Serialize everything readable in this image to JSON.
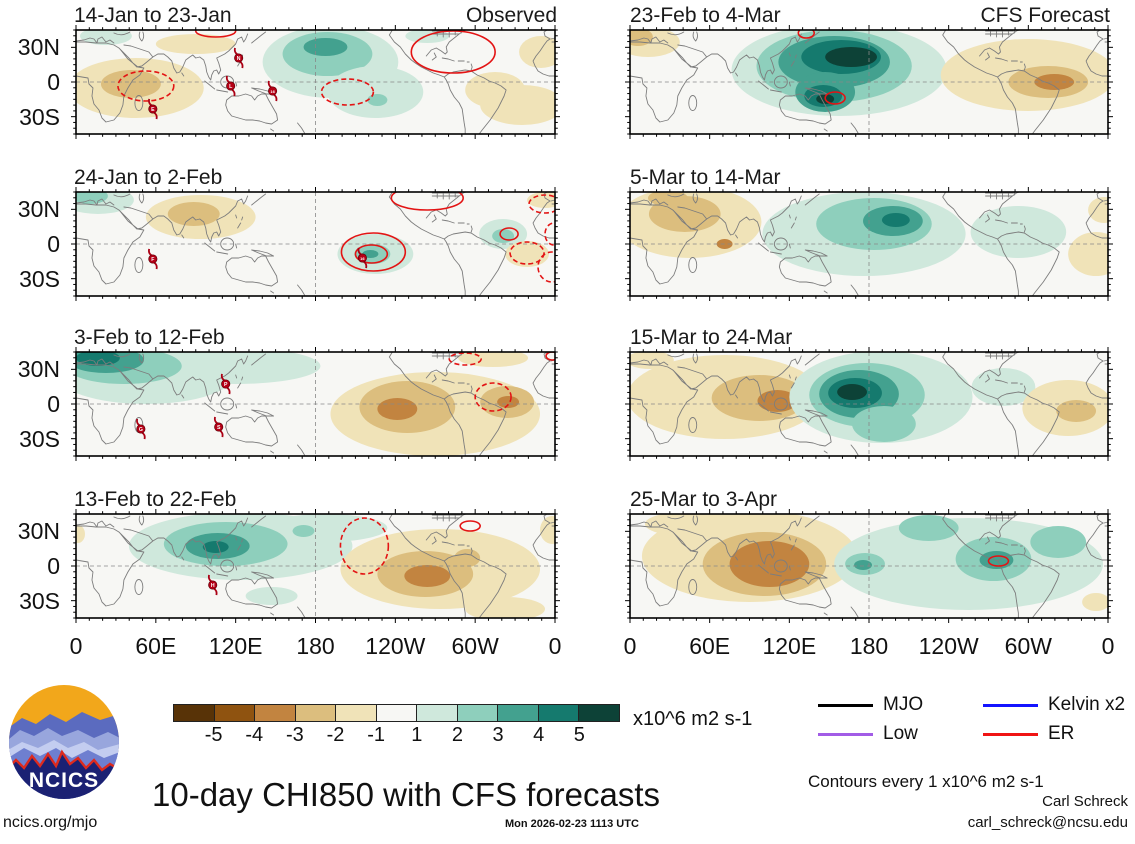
{
  "chart_data": {
    "type": "heatmap",
    "title": "10-day CHI850 with CFS forecasts",
    "units_label": "x10^6 m2 s-1",
    "contour_note": "Contours every 1 x10^6 m2 s-1",
    "x_ticks": [
      "0",
      "60E",
      "120E",
      "180",
      "120W",
      "60W",
      "0"
    ],
    "y_ticks": [
      "30N",
      "0",
      "30S"
    ],
    "colorbar": {
      "levels": [
        "-5",
        "-4",
        "-3",
        "-2",
        "-1",
        "1",
        "2",
        "3",
        "4",
        "5"
      ],
      "colors": [
        "#583307",
        "#8f5310",
        "#c28440",
        "#dcbe7e",
        "#f0e3b8",
        "#f7f7f4",
        "#cfe8dc",
        "#8ecfbc",
        "#43a18f",
        "#157a6e",
        "#0d4237"
      ]
    },
    "legend": [
      {
        "label": "MJO",
        "color": "#000000"
      },
      {
        "label": "Low",
        "color": "#a25ce6"
      },
      {
        "label": "Kelvin x2",
        "color": "#1414ff"
      },
      {
        "label": "ER",
        "color": "#f01414"
      }
    ],
    "panels": [
      {
        "title": "14-Jan to 23-Jan",
        "subtitle": "Observed",
        "blobs": [
          [
            30,
            6,
            26,
            9,
            1
          ],
          [
            120,
            14,
            40,
            10,
            -1
          ],
          [
            60,
            58,
            68,
            30,
            -1
          ],
          [
            55,
            54,
            30,
            14,
            -2
          ],
          [
            255,
            32,
            68,
            36,
            1
          ],
          [
            252,
            24,
            45,
            22,
            2
          ],
          [
            250,
            17,
            22,
            9,
            3
          ],
          [
            300,
            62,
            48,
            26,
            1
          ],
          [
            302,
            70,
            10,
            6,
            2
          ],
          [
            352,
            6,
            22,
            7,
            1
          ],
          [
            466,
            22,
            22,
            16,
            -1
          ],
          [
            447,
            75,
            42,
            20,
            -1
          ],
          [
            420,
            60,
            30,
            18,
            -1
          ]
        ],
        "contours": [
          [
            378,
            22,
            42,
            21,
            "solid"
          ],
          [
            140,
            1,
            20,
            6,
            "solid"
          ],
          [
            70,
            56,
            28,
            15,
            "dash"
          ],
          [
            272,
            62,
            26,
            13,
            "dash"
          ]
        ],
        "storms": [
          [
            163,
            28,
            "N"
          ],
          [
            155,
            56,
            "L"
          ],
          [
            197,
            61,
            "16"
          ],
          [
            77,
            79,
            "E"
          ]
        ]
      },
      {
        "title": "24-Jan to 2-Feb",
        "subtitle": "",
        "blobs": [
          [
            22,
            8,
            36,
            14,
            1
          ],
          [
            14,
            4,
            18,
            8,
            2
          ],
          [
            125,
            25,
            55,
            22,
            -1
          ],
          [
            118,
            22,
            26,
            12,
            -2
          ],
          [
            300,
            62,
            38,
            20,
            1
          ],
          [
            297,
            62,
            18,
            10,
            2
          ],
          [
            295,
            62,
            8,
            4,
            3
          ],
          [
            428,
            42,
            24,
            15,
            1
          ],
          [
            428,
            44,
            11,
            7,
            2
          ],
          [
            452,
            62,
            22,
            13,
            -1
          ],
          [
            470,
            8,
            18,
            8,
            -1
          ]
        ],
        "contours": [
          [
            298,
            60,
            32,
            19,
            "solid"
          ],
          [
            296,
            62,
            16,
            9,
            "solid"
          ],
          [
            352,
            6,
            36,
            12,
            "solid"
          ],
          [
            434,
            42,
            9,
            6,
            "solid"
          ],
          [
            452,
            61,
            17,
            11,
            "dash"
          ],
          [
            477,
            75,
            14,
            15,
            "dash"
          ],
          [
            470,
            12,
            16,
            9,
            "dash"
          ],
          [
            479,
            42,
            9,
            11,
            "dash"
          ]
        ],
        "storms": [
          [
            77,
            67,
            "F"
          ],
          [
            287,
            66,
            "16"
          ]
        ]
      },
      {
        "title": "3-Feb to 12-Feb",
        "subtitle": "",
        "blobs": [
          [
            70,
            22,
            90,
            30,
            1
          ],
          [
            160,
            14,
            85,
            18,
            1
          ],
          [
            48,
            14,
            58,
            18,
            2
          ],
          [
            30,
            8,
            38,
            13,
            3
          ],
          [
            22,
            6,
            22,
            8,
            4
          ],
          [
            360,
            62,
            105,
            42,
            -1
          ],
          [
            418,
            6,
            35,
            9,
            -1
          ],
          [
            332,
            55,
            48,
            26,
            -2
          ],
          [
            322,
            57,
            20,
            11,
            -3
          ],
          [
            432,
            50,
            27,
            16,
            -2
          ],
          [
            433,
            50,
            11,
            6,
            -3
          ]
        ],
        "contours": [
          [
            418,
            45,
            18,
            14,
            "dash"
          ],
          [
            390,
            7,
            16,
            6,
            "dash"
          ],
          [
            477,
            4,
            6,
            4,
            "solid"
          ]
        ],
        "storms": [
          [
            150,
            32,
            "P"
          ],
          [
            65,
            77,
            "G"
          ],
          [
            143,
            75,
            "S"
          ]
        ]
      },
      {
        "title": "13-Feb to 22-Feb",
        "subtitle": "",
        "blobs": [
          [
            165,
            32,
            112,
            34,
            1
          ],
          [
            250,
            14,
            62,
            14,
            1
          ],
          [
            150,
            30,
            62,
            22,
            2
          ],
          [
            142,
            32,
            32,
            13,
            3
          ],
          [
            140,
            33,
            13,
            6,
            4
          ],
          [
            228,
            17,
            11,
            6,
            2
          ],
          [
            196,
            82,
            26,
            9,
            1
          ],
          [
            365,
            55,
            100,
            40,
            -1
          ],
          [
            350,
            60,
            48,
            23,
            -2
          ],
          [
            352,
            62,
            23,
            11,
            -3
          ],
          [
            392,
            44,
            13,
            9,
            -2
          ],
          [
            477,
            16,
            12,
            14,
            -1
          ],
          [
            2,
            20,
            7,
            9,
            -1
          ],
          [
            430,
            95,
            40,
            12,
            -1
          ]
        ],
        "contours": [
          [
            289,
            32,
            24,
            28,
            "dash"
          ],
          [
            395,
            12,
            10,
            5,
            "solid"
          ]
        ],
        "storms": [
          [
            137,
            71,
            "H"
          ]
        ]
      },
      {
        "title": "23-Feb to 4-Mar",
        "subtitle": "CFS Forecast",
        "blobs": [
          [
            18,
            12,
            32,
            15,
            -1
          ],
          [
            8,
            7,
            15,
            9,
            -2
          ],
          [
            210,
            40,
            108,
            46,
            1
          ],
          [
            205,
            36,
            78,
            36,
            2
          ],
          [
            205,
            32,
            56,
            26,
            3
          ],
          [
            212,
            27,
            40,
            17,
            4
          ],
          [
            222,
            27,
            26,
            10,
            5
          ],
          [
            196,
            62,
            30,
            20,
            3
          ],
          [
            194,
            66,
            19,
            11,
            4
          ],
          [
            196,
            69,
            9,
            5,
            5
          ],
          [
            400,
            45,
            88,
            36,
            -1
          ],
          [
            420,
            52,
            40,
            16,
            -2
          ],
          [
            426,
            52,
            20,
            8,
            -3
          ]
        ],
        "contours": [
          [
            177,
            3,
            8,
            5,
            "solid"
          ],
          [
            206,
            68,
            10,
            6,
            "solid"
          ]
        ],
        "storms": []
      },
      {
        "title": "5-Mar to 14-Mar",
        "subtitle": "",
        "blobs": [
          [
            60,
            30,
            72,
            36,
            -1
          ],
          [
            55,
            22,
            36,
            18,
            -2
          ],
          [
            95,
            52,
            8,
            5,
            -3
          ],
          [
            38,
            6,
            20,
            8,
            -2
          ],
          [
            235,
            42,
            102,
            42,
            1
          ],
          [
            245,
            32,
            58,
            26,
            2
          ],
          [
            264,
            29,
            30,
            15,
            3
          ],
          [
            267,
            28,
            14,
            7,
            4
          ],
          [
            390,
            40,
            48,
            26,
            1
          ],
          [
            468,
            62,
            28,
            22,
            -1
          ],
          [
            476,
            18,
            16,
            13,
            -1
          ]
        ],
        "contours": [],
        "storms": []
      },
      {
        "title": "15-Mar to 24-Mar",
        "subtitle": "",
        "blobs": [
          [
            95,
            45,
            98,
            42,
            -1
          ],
          [
            130,
            46,
            48,
            23,
            -2
          ],
          [
            148,
            49,
            20,
            11,
            -3
          ],
          [
            20,
            8,
            24,
            9,
            -1
          ],
          [
            252,
            45,
            92,
            46,
            1
          ],
          [
            238,
            43,
            58,
            32,
            2
          ],
          [
            230,
            42,
            40,
            24,
            3
          ],
          [
            226,
            41,
            27,
            15,
            4
          ],
          [
            223,
            40,
            15,
            8,
            5
          ],
          [
            255,
            72,
            32,
            18,
            2
          ],
          [
            375,
            35,
            32,
            19,
            1
          ],
          [
            440,
            56,
            46,
            28,
            -1
          ],
          [
            448,
            59,
            20,
            11,
            -2
          ]
        ],
        "contours": [],
        "storms": []
      },
      {
        "title": "25-Mar to 3-Apr",
        "subtitle": "",
        "blobs": [
          [
            120,
            42,
            108,
            46,
            -1
          ],
          [
            135,
            50,
            62,
            32,
            -2
          ],
          [
            140,
            50,
            40,
            23,
            -3
          ],
          [
            55,
            10,
            40,
            12,
            -1
          ],
          [
            340,
            50,
            135,
            46,
            1
          ],
          [
            300,
            14,
            30,
            13,
            2
          ],
          [
            236,
            50,
            20,
            11,
            2
          ],
          [
            234,
            51,
            9,
            5,
            3
          ],
          [
            365,
            45,
            38,
            22,
            2
          ],
          [
            368,
            46,
            17,
            9,
            3
          ],
          [
            430,
            28,
            28,
            16,
            2
          ],
          [
            468,
            88,
            14,
            9,
            -1
          ]
        ],
        "contours": [
          [
            370,
            47,
            10,
            5,
            "solid"
          ]
        ],
        "storms": []
      }
    ]
  },
  "branding": {
    "logo_text": "NCICS",
    "site": "ncics.org/mjo"
  },
  "footer": {
    "timestamp": "Mon 2026-02-23 1113 UTC",
    "author": "Carl Schreck",
    "email": "carl_schreck@ncsu.edu"
  }
}
